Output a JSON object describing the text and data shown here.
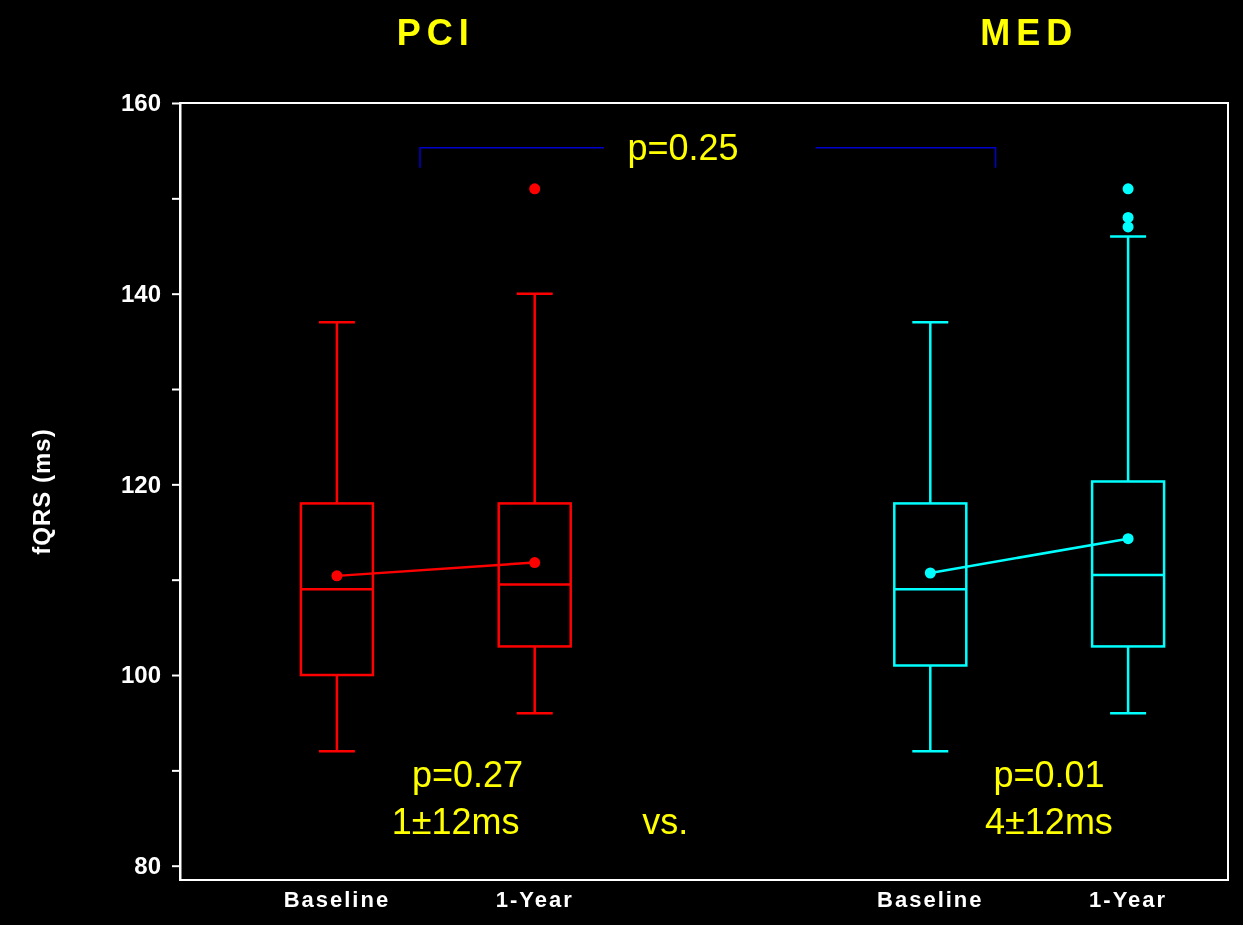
{
  "chart_data": {
    "type": "box",
    "ylabel": "fQRS (ms)",
    "categories": [
      "Baseline",
      "1-Year",
      null,
      "Baseline",
      "1-Year"
    ],
    "ylim": [
      78.5,
      160
    ],
    "yticks": [
      80,
      {
        "value": 90,
        "label": null
      },
      100,
      {
        "value": 110,
        "label": null
      },
      120,
      {
        "value": 130,
        "label": null
      },
      140,
      {
        "value": 150,
        "label": null
      },
      160
    ],
    "grid": false,
    "series": [
      {
        "color": "#ff0000",
        "boxes": [
          {
            "low": 92,
            "q1": 100,
            "median": 109,
            "q3": 118,
            "high": 137
          },
          {
            "low": 96,
            "q1": 103,
            "median": 109.5,
            "q3": 118,
            "high": 140,
            "outliers": [
              151
            ]
          },
          null,
          null,
          null
        ]
      },
      {
        "color": "#00ffff",
        "boxes": [
          null,
          null,
          null,
          {
            "low": 92,
            "q1": 101,
            "median": 109,
            "q3": 118,
            "high": 137
          },
          {
            "low": 96,
            "q1": 103,
            "median": 110.5,
            "q3": 120.3,
            "high": 146,
            "outliers": [
              151,
              148,
              147
            ]
          }
        ]
      },
      {
        "type": "line",
        "color": "#ff0000",
        "marker": "circle",
        "values": [
          110.4,
          111.8,
          null,
          null,
          null
        ]
      },
      {
        "type": "line",
        "color": "#00ffff",
        "marker": "circle",
        "values": [
          null,
          null,
          null,
          110.7,
          114.3
        ]
      }
    ],
    "annotations": [
      "PCI",
      "MED",
      "p=0.25",
      "p=0.27",
      "p=0.01",
      "1±12ms",
      "vs.",
      "4±12ms"
    ]
  }
}
